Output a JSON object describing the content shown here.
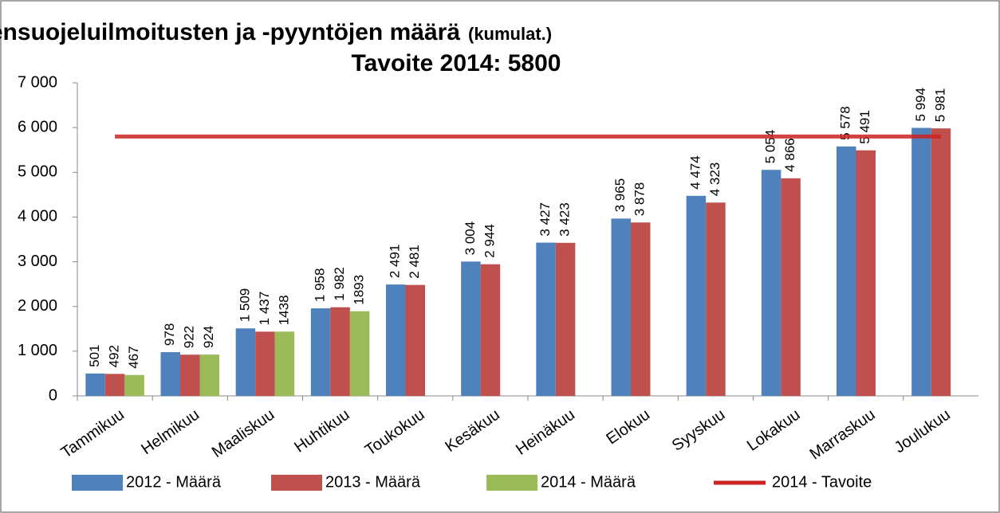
{
  "chart_data": {
    "type": "bar",
    "title": "Lastensuojeluilmoitusten ja -pyyntöjen määrä",
    "title_note": "(kumulat.)",
    "subtitle": "Tavoite 2014: 5800",
    "categories": [
      "Tammikuu",
      "Helmikuu",
      "Maaliskuu",
      "Huhtikuu",
      "Toukokuu",
      "Kesäkuu",
      "Heinäkuu",
      "Elokuu",
      "Syyskuu",
      "Lokakuu",
      "Marraskuu",
      "Joulukuu"
    ],
    "series": [
      {
        "name": "2012 - Määrä",
        "color": "#4f81bd",
        "values": [
          501,
          978,
          1509,
          1958,
          2491,
          3004,
          3427,
          3965,
          4474,
          5054,
          5578,
          5994
        ],
        "value_labels": [
          "501",
          "978",
          "1 509",
          "1 958",
          "2 491",
          "3 004",
          "3 427",
          "3 965",
          "4 474",
          "5 054",
          "5 578",
          "5 994"
        ]
      },
      {
        "name": "2013 - Määrä",
        "color": "#c0504d",
        "values": [
          492,
          922,
          1437,
          1982,
          2481,
          2944,
          3423,
          3878,
          4323,
          4866,
          5491,
          5981
        ],
        "value_labels": [
          "492",
          "922",
          "1 437",
          "1 982",
          "2 481",
          "2 944",
          "3 423",
          "3 878",
          "4 323",
          "4 866",
          "5 491",
          "5 981"
        ]
      },
      {
        "name": "2014 - Määrä",
        "color": "#9bbb59",
        "values": [
          467,
          924,
          1438,
          1893,
          null,
          null,
          null,
          null,
          null,
          null,
          null,
          null
        ]
      },
      {
        "name": "2014 - Tavoite",
        "color": "#cc2222",
        "kind": "line",
        "values": [
          5800,
          5800,
          5800,
          5800,
          5800,
          5800,
          5800,
          5800,
          5800,
          5800,
          5800,
          5800
        ]
      }
    ],
    "ylim": [
      0,
      7000
    ],
    "yticks": [
      0,
      {
        "value": 1000,
        "label": "1 000"
      },
      {
        "value": 2000,
        "label": "2 000"
      },
      {
        "value": 3000,
        "label": "3 000"
      },
      {
        "value": 4000,
        "label": "4 000"
      },
      {
        "value": 5000,
        "label": "5 000"
      },
      {
        "value": 6000,
        "label": "6 000"
      },
      {
        "value": 7000,
        "label": "7 000"
      }
    ],
    "legend": "bottom"
  }
}
